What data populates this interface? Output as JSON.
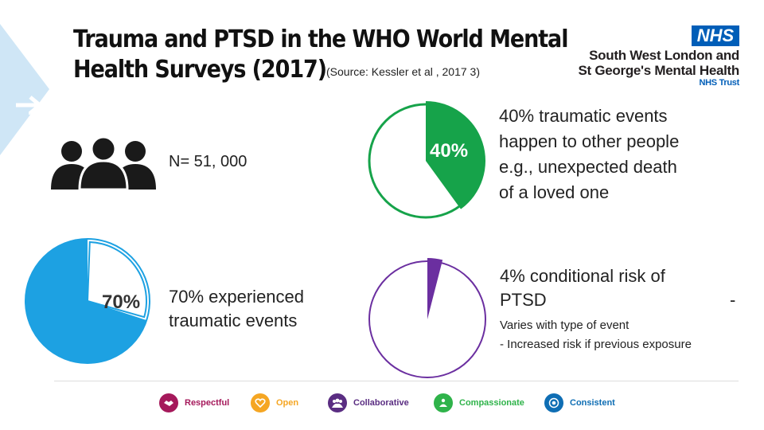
{
  "title": {
    "line1": "Trauma and PTSD in the WHO World Mental",
    "line2": "Health Surveys (2017)",
    "source": "(Source: Kessler et al , 2017 3)"
  },
  "logo": {
    "badge": "NHS",
    "org_line1": "South West London and",
    "org_line2": "St George's Mental Health",
    "org_line3": "NHS Trust",
    "badge_color": "#005eb8"
  },
  "stats": {
    "sample_size": "N= 51, 000",
    "experienced": {
      "pct_label": "70%",
      "pct_value": 70,
      "line1": "70% experienced",
      "line2": "traumatic events",
      "color": "#1da1e2"
    },
    "other_people": {
      "pct_label": "40%",
      "pct_value": 40,
      "line1": "40% traumatic events",
      "line2": "happen to other people",
      "line3": "e.g., unexpected death",
      "line4": "of a loved one",
      "color": "#16a34a"
    },
    "ptsd_risk": {
      "pct_value": 4,
      "line1": "4% conditional risk of",
      "line2": "PTSD",
      "dash": "-",
      "varies": "Varies with type of event",
      "exposure": "-  Increased risk if previous exposure",
      "color": "#6b2fa0"
    }
  },
  "values_bar": [
    {
      "label": "Respectful",
      "icon": "handshake-icon",
      "color": "#a5195b"
    },
    {
      "label": "Open",
      "icon": "open-heart-icon",
      "color": "#f5a623"
    },
    {
      "label": "Collaborative",
      "icon": "group-icon",
      "color": "#5a2d82"
    },
    {
      "label": "Compassionate",
      "icon": "compassion-icon",
      "color": "#2fb34a"
    },
    {
      "label": "Consistent",
      "icon": "target-icon",
      "color": "#0f6eb4"
    }
  ]
}
